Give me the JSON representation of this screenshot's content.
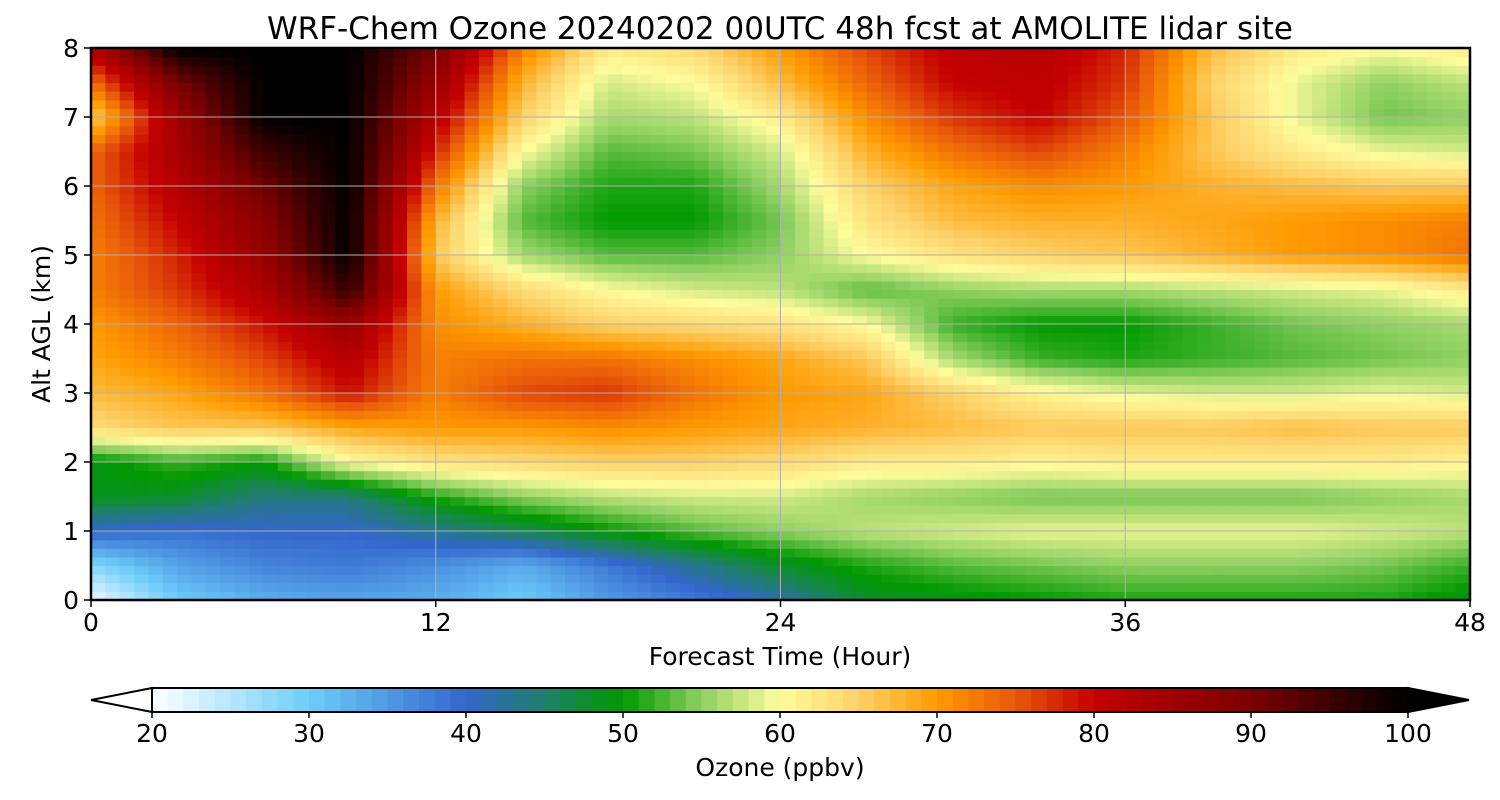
{
  "chart_data": {
    "type": "heatmap",
    "title": "WRF-Chem Ozone  20240202 00UTC 48h fcst at AMOLITE lidar site",
    "xlabel": "Forecast Time (Hour)",
    "ylabel": "Alt AGL (km)",
    "xlim": [
      0,
      48
    ],
    "ylim": [
      0,
      8
    ],
    "xticks": [
      "0",
      "12",
      "24",
      "36",
      "48"
    ],
    "yticks": [
      "0",
      "1",
      "2",
      "3",
      "4",
      "5",
      "6",
      "7",
      "8"
    ],
    "grid": true,
    "x": [
      0,
      3,
      6,
      9,
      12,
      15,
      18,
      21,
      24,
      27,
      30,
      33,
      36,
      39,
      42,
      45,
      48
    ],
    "y": [
      0,
      0.5,
      1,
      1.5,
      2,
      2.5,
      3,
      3.5,
      4,
      4.5,
      5,
      5.5,
      6,
      6.5,
      7,
      7.5,
      8
    ],
    "z": [
      [
        21,
        30,
        33,
        34,
        33,
        30,
        35,
        38,
        42,
        48,
        49,
        50,
        51,
        51,
        51,
        51,
        49
      ],
      [
        28,
        34,
        37,
        38,
        36,
        33,
        38,
        43,
        48,
        51,
        53,
        54,
        55,
        55,
        55,
        54,
        52
      ],
      [
        40,
        39,
        40,
        40,
        43,
        46,
        50,
        53,
        55,
        57,
        58,
        59,
        59,
        59,
        59,
        58,
        57
      ],
      [
        49,
        48,
        44,
        44,
        51,
        55,
        57,
        58,
        58,
        56,
        55,
        54,
        54,
        54,
        54,
        55,
        56
      ],
      [
        49,
        52,
        50,
        60,
        63,
        64,
        65,
        65,
        64,
        62,
        62,
        61,
        62,
        62,
        62,
        62,
        61
      ],
      [
        64,
        66,
        66,
        69,
        70,
        70,
        71,
        70,
        69,
        68,
        67,
        66,
        66,
        66,
        67,
        66,
        66
      ],
      [
        67,
        69,
        73,
        79,
        72,
        76,
        77,
        73,
        70,
        69,
        65,
        61,
        59,
        58,
        58,
        59,
        58
      ],
      [
        69,
        72,
        76,
        82,
        72,
        73,
        73,
        71,
        69,
        66,
        56,
        52,
        51,
        52,
        53,
        54,
        55
      ],
      [
        70,
        74,
        79,
        86,
        71,
        68,
        65,
        64,
        63,
        60,
        52,
        50,
        50,
        52,
        54,
        55,
        56
      ],
      [
        72,
        77,
        83,
        96,
        70,
        64,
        60,
        58,
        57,
        53,
        55,
        56,
        56,
        57,
        58,
        59,
        62
      ],
      [
        72,
        78,
        86,
        100,
        66,
        56,
        53,
        53,
        55,
        60,
        63,
        65,
        66,
        68,
        70,
        71,
        73
      ],
      [
        73,
        80,
        88,
        100,
        68,
        53,
        50,
        50,
        54,
        63,
        67,
        68,
        68,
        69,
        70,
        71,
        72
      ],
      [
        74,
        82,
        91,
        100,
        73,
        55,
        51,
        51,
        56,
        65,
        69,
        71,
        70,
        68,
        67,
        66,
        66
      ],
      [
        74,
        84,
        95,
        100,
        78,
        60,
        53,
        54,
        58,
        68,
        73,
        76,
        72,
        66,
        62,
        59,
        58
      ],
      [
        65,
        85,
        100,
        100,
        82,
        65,
        56,
        57,
        62,
        71,
        77,
        80,
        75,
        66,
        59,
        54,
        55
      ],
      [
        73,
        90,
        100,
        100,
        86,
        68,
        58,
        60,
        67,
        74,
        80,
        81,
        77,
        65,
        59,
        55,
        57
      ],
      [
        82,
        100,
        100,
        100,
        90,
        72,
        62,
        64,
        70,
        76,
        81,
        82,
        78,
        67,
        62,
        60,
        62
      ]
    ],
    "colorbar": {
      "label": "Ozone  (ppbv)",
      "min": 20,
      "max": 100,
      "ticks": [
        "20",
        "30",
        "40",
        "50",
        "60",
        "70",
        "80",
        "90",
        "100"
      ],
      "extend": "both",
      "stops": [
        {
          "value": 20,
          "color": "#ffffff"
        },
        {
          "value": 30,
          "color": "#6ccdfa"
        },
        {
          "value": 40,
          "color": "#3366cc"
        },
        {
          "value": 45,
          "color": "#1f7f6a"
        },
        {
          "value": 50,
          "color": "#009900"
        },
        {
          "value": 55,
          "color": "#8fd062"
        },
        {
          "value": 60,
          "color": "#fffc9c"
        },
        {
          "value": 65,
          "color": "#fdd26a"
        },
        {
          "value": 70,
          "color": "#ff9a00"
        },
        {
          "value": 75,
          "color": "#e8580a"
        },
        {
          "value": 80,
          "color": "#c40000"
        },
        {
          "value": 90,
          "color": "#7a0000"
        },
        {
          "value": 100,
          "color": "#000000"
        }
      ]
    }
  }
}
